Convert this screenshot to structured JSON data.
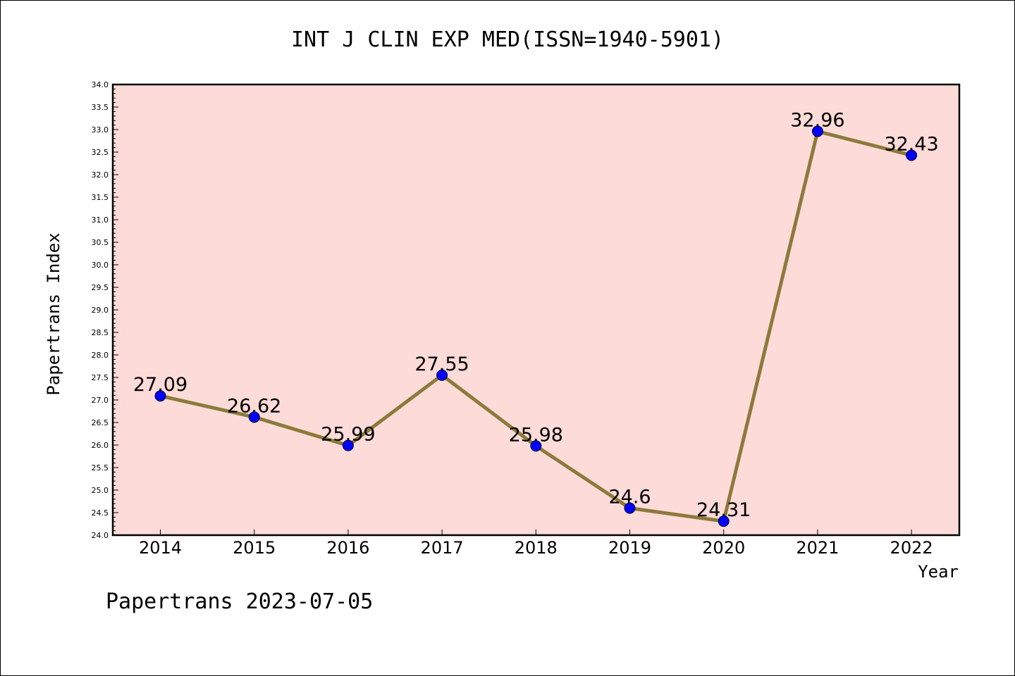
{
  "chart_data": {
    "type": "line",
    "title": "INT J CLIN EXP MED(ISSN=1940-5901)",
    "xlabel": "Year",
    "ylabel": "Papertrans Index",
    "x": [
      "2014",
      "2015",
      "2016",
      "2017",
      "2018",
      "2019",
      "2020",
      "2021",
      "2022"
    ],
    "series": [
      {
        "values": [
          27.09,
          26.62,
          25.99,
          27.55,
          25.98,
          24.6,
          24.31,
          32.96,
          32.43
        ]
      }
    ],
    "data_labels": [
      "27.09",
      "26.62",
      "25.99",
      "27.55",
      "25.98",
      "24.6",
      "24.31",
      "32.96",
      "32.43"
    ],
    "ylim": [
      24.0,
      34.0
    ],
    "yticks": [
      "24.0",
      "24.5",
      "25.0",
      "25.5",
      "26.0",
      "26.5",
      "27.0",
      "27.5",
      "28.0",
      "28.5",
      "29.0",
      "29.5",
      "30.0",
      "30.5",
      "31.0",
      "31.5",
      "32.0",
      "32.5",
      "33.0",
      "33.5",
      "34.0"
    ],
    "grid": false,
    "colors": {
      "plot_background": "#fddbd8",
      "line": "#8b7a3a",
      "marker": "#0000ff"
    }
  },
  "footer": {
    "text": "Papertrans 2023-07-05"
  }
}
